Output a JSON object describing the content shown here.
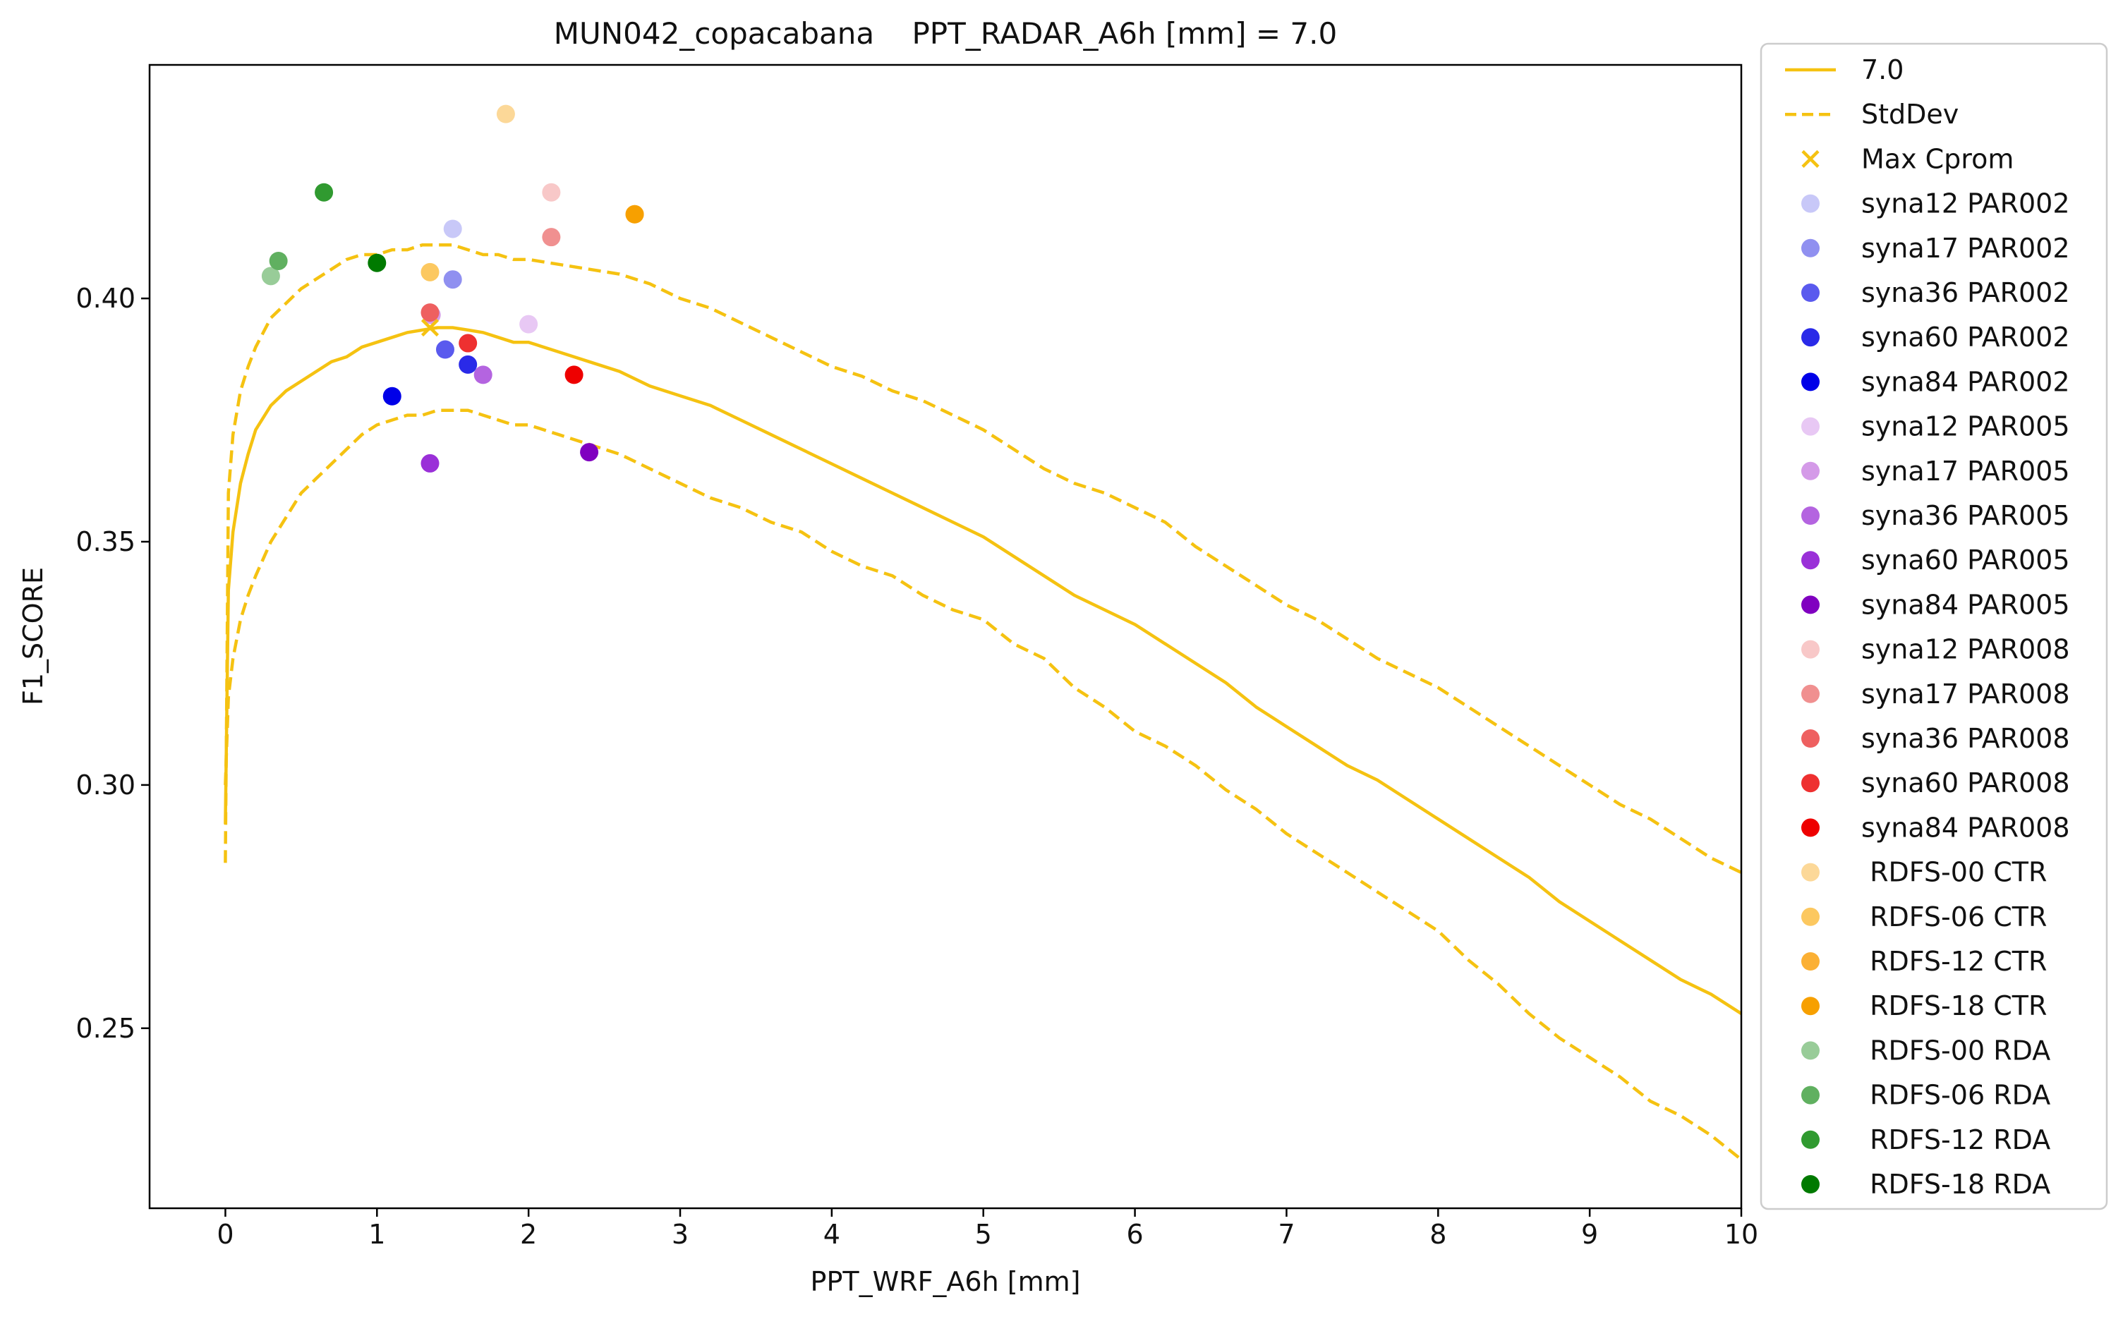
{
  "chart_data": {
    "type": "line",
    "title": "MUN042_copacabana    PPT_RADAR_A6h [mm] = 7.0",
    "xlabel": "PPT_WRF_A6h [mm]",
    "ylabel": "F1_SCORE",
    "xlim": [
      -0.5,
      10
    ],
    "ylim": [
      0.213,
      0.448
    ],
    "xticks": [
      0,
      1,
      2,
      3,
      4,
      5,
      6,
      7,
      8,
      9,
      10
    ],
    "yticks": [
      0.25,
      0.3,
      0.35,
      0.4
    ],
    "ytick_labels": [
      "0.25",
      "0.30",
      "0.35",
      "0.40"
    ],
    "grid": false,
    "legend_position": "outside-right",
    "line_color": "#f5c211",
    "series": [
      {
        "name": "7.0",
        "style": "solid",
        "x": [
          0,
          0.02,
          0.05,
          0.1,
          0.15,
          0.2,
          0.3,
          0.4,
          0.5,
          0.6,
          0.7,
          0.8,
          0.9,
          1.0,
          1.1,
          1.2,
          1.3,
          1.4,
          1.5,
          1.6,
          1.7,
          1.8,
          1.9,
          2.0,
          2.2,
          2.4,
          2.6,
          2.8,
          3.0,
          3.2,
          3.4,
          3.6,
          3.8,
          4.0,
          4.2,
          4.4,
          4.6,
          4.8,
          5.0,
          5.2,
          5.4,
          5.6,
          5.8,
          6.0,
          6.2,
          6.4,
          6.6,
          6.8,
          7.0,
          7.2,
          7.4,
          7.6,
          7.8,
          8.0,
          8.2,
          8.4,
          8.6,
          8.8,
          9.0,
          9.2,
          9.4,
          9.6,
          9.8,
          10.0
        ],
        "y": [
          0.292,
          0.34,
          0.352,
          0.362,
          0.368,
          0.373,
          0.378,
          0.381,
          0.383,
          0.385,
          0.387,
          0.388,
          0.39,
          0.391,
          0.392,
          0.393,
          0.3935,
          0.394,
          0.394,
          0.3935,
          0.393,
          0.392,
          0.391,
          0.391,
          0.389,
          0.387,
          0.385,
          0.382,
          0.38,
          0.378,
          0.375,
          0.372,
          0.369,
          0.366,
          0.363,
          0.36,
          0.357,
          0.354,
          0.351,
          0.347,
          0.343,
          0.339,
          0.336,
          0.333,
          0.329,
          0.325,
          0.321,
          0.316,
          0.312,
          0.308,
          0.304,
          0.301,
          0.297,
          0.293,
          0.289,
          0.285,
          0.281,
          0.276,
          0.272,
          0.268,
          0.264,
          0.26,
          0.257,
          0.253
        ]
      },
      {
        "name": "StdDev",
        "style": "dashed",
        "x": [
          0,
          0.02,
          0.05,
          0.1,
          0.15,
          0.2,
          0.3,
          0.4,
          0.5,
          0.6,
          0.7,
          0.8,
          0.9,
          1.0,
          1.1,
          1.2,
          1.3,
          1.4,
          1.5,
          1.6,
          1.7,
          1.8,
          1.9,
          2.0,
          2.2,
          2.4,
          2.6,
          2.8,
          3.0,
          3.2,
          3.4,
          3.6,
          3.8,
          4.0,
          4.2,
          4.4,
          4.6,
          4.8,
          5.0,
          5.2,
          5.4,
          5.6,
          5.8,
          6.0,
          6.2,
          6.4,
          6.6,
          6.8,
          7.0,
          7.2,
          7.4,
          7.6,
          7.8,
          8.0,
          8.2,
          8.4,
          8.6,
          8.8,
          9.0,
          9.2,
          9.4,
          9.6,
          9.8,
          10.0
        ],
        "y": [
          0.284,
          0.36,
          0.372,
          0.381,
          0.386,
          0.39,
          0.396,
          0.399,
          0.402,
          0.404,
          0.406,
          0.408,
          0.409,
          0.409,
          0.41,
          0.41,
          0.411,
          0.411,
          0.411,
          0.41,
          0.409,
          0.409,
          0.408,
          0.408,
          0.407,
          0.406,
          0.405,
          0.403,
          0.4,
          0.398,
          0.395,
          0.392,
          0.389,
          0.386,
          0.384,
          0.381,
          0.379,
          0.376,
          0.373,
          0.369,
          0.365,
          0.362,
          0.36,
          0.357,
          0.354,
          0.349,
          0.345,
          0.341,
          0.337,
          0.334,
          0.33,
          0.326,
          0.323,
          0.32,
          0.316,
          0.312,
          0.308,
          0.304,
          0.3,
          0.296,
          0.293,
          0.289,
          0.285,
          0.282
        ]
      },
      {
        "name": "",
        "style": "dashed",
        "x": [
          0,
          0.02,
          0.05,
          0.1,
          0.15,
          0.2,
          0.3,
          0.4,
          0.5,
          0.6,
          0.7,
          0.8,
          0.9,
          1.0,
          1.1,
          1.2,
          1.3,
          1.4,
          1.5,
          1.6,
          1.7,
          1.8,
          1.9,
          2.0,
          2.2,
          2.4,
          2.6,
          2.8,
          3.0,
          3.2,
          3.4,
          3.6,
          3.8,
          4.0,
          4.2,
          4.4,
          4.6,
          4.8,
          5.0,
          5.2,
          5.4,
          5.6,
          5.8,
          6.0,
          6.2,
          6.4,
          6.6,
          6.8,
          7.0,
          7.2,
          7.4,
          7.6,
          7.8,
          8.0,
          8.2,
          8.4,
          8.6,
          8.8,
          9.0,
          9.2,
          9.4,
          9.6,
          9.8,
          10.0
        ],
        "y": [
          0.3,
          0.318,
          0.326,
          0.334,
          0.339,
          0.343,
          0.35,
          0.355,
          0.36,
          0.363,
          0.366,
          0.369,
          0.372,
          0.374,
          0.375,
          0.376,
          0.376,
          0.377,
          0.377,
          0.377,
          0.376,
          0.375,
          0.374,
          0.374,
          0.372,
          0.37,
          0.368,
          0.365,
          0.362,
          0.359,
          0.357,
          0.354,
          0.352,
          0.348,
          0.345,
          0.343,
          0.339,
          0.336,
          0.334,
          0.329,
          0.326,
          0.32,
          0.316,
          0.311,
          0.308,
          0.304,
          0.299,
          0.295,
          0.29,
          0.286,
          0.282,
          0.278,
          0.274,
          0.27,
          0.264,
          0.259,
          0.253,
          0.248,
          0.244,
          0.24,
          0.235,
          0.232,
          0.228,
          0.223
        ]
      }
    ],
    "max_cprom": {
      "name": "Max Cprom",
      "x": 1.35,
      "y": 0.394
    },
    "points": [
      {
        "name": "syna12 PAR002",
        "color": "#c8c8f8",
        "x": 1.5,
        "y": 0.4143
      },
      {
        "name": "syna17 PAR002",
        "color": "#9090f0",
        "x": 1.5,
        "y": 0.4039
      },
      {
        "name": "syna36 PAR002",
        "color": "#5a5aee",
        "x": 1.45,
        "y": 0.3895
      },
      {
        "name": "syna60 PAR002",
        "color": "#2a2ae8",
        "x": 1.6,
        "y": 0.3864
      },
      {
        "name": "syna84 PAR002",
        "color": "#0000e8",
        "x": 1.1,
        "y": 0.3799
      },
      {
        "name": "syna12 PAR005",
        "color": "#e8c8f4",
        "x": 2.0,
        "y": 0.3947
      },
      {
        "name": "syna17 PAR005",
        "color": "#d49ae8",
        "x": 1.36,
        "y": 0.3966
      },
      {
        "name": "syna36 PAR005",
        "color": "#b464e0",
        "x": 1.7,
        "y": 0.3843
      },
      {
        "name": "syna60 PAR005",
        "color": "#9a30d8",
        "x": 1.35,
        "y": 0.3661
      },
      {
        "name": "syna84 PAR005",
        "color": "#8000c0",
        "x": 2.4,
        "y": 0.3684
      },
      {
        "name": "syna12 PAR008",
        "color": "#f8c8c8",
        "x": 2.15,
        "y": 0.4218
      },
      {
        "name": "syna17 PAR008",
        "color": "#f09090",
        "x": 2.15,
        "y": 0.4126
      },
      {
        "name": "syna36 PAR008",
        "color": "#ee6060",
        "x": 1.35,
        "y": 0.3971
      },
      {
        "name": "syna60 PAR008",
        "color": "#ee3030",
        "x": 1.6,
        "y": 0.3908
      },
      {
        "name": "syna84 PAR008",
        "color": "#ee0000",
        "x": 2.3,
        "y": 0.3843
      },
      {
        "name": "RDFS-00 CTR",
        "color": "#fcd898",
        "x": 1.85,
        "y": 0.4379
      },
      {
        "name": "RDFS-06 CTR",
        "color": "#fcc860",
        "x": 1.35,
        "y": 0.4054
      },
      {
        "name": "RDFS-12 CTR",
        "color": "#fbb034",
        "x": 2.7,
        "y": 0.4173
      },
      {
        "name": "RDFS-18 CTR",
        "color": "#f7a000",
        "x": 2.7,
        "y": 0.4173
      },
      {
        "name": "RDFS-00 RDA",
        "color": "#98cc98",
        "x": 0.3,
        "y": 0.4046
      },
      {
        "name": "RDFS-06 RDA",
        "color": "#60b060",
        "x": 0.35,
        "y": 0.4077
      },
      {
        "name": "RDFS-12 RDA",
        "color": "#309a30",
        "x": 0.65,
        "y": 0.4218
      },
      {
        "name": "RDFS-18 RDA",
        "color": "#007a00",
        "x": 1.0,
        "y": 0.4073
      }
    ]
  },
  "legend": {
    "entries": [
      {
        "label": "7.0",
        "kind": "line",
        "color": "#f5c211"
      },
      {
        "label": "StdDev",
        "kind": "dashed",
        "color": "#f5c211"
      },
      {
        "label": "Max Cprom",
        "kind": "x",
        "color": "#f5c211"
      },
      {
        "label": "syna12 PAR002",
        "kind": "dot",
        "color": "#c8c8f8"
      },
      {
        "label": "syna17 PAR002",
        "kind": "dot",
        "color": "#9090f0"
      },
      {
        "label": "syna36 PAR002",
        "kind": "dot",
        "color": "#5a5aee"
      },
      {
        "label": "syna60 PAR002",
        "kind": "dot",
        "color": "#2a2ae8"
      },
      {
        "label": "syna84 PAR002",
        "kind": "dot",
        "color": "#0000e8"
      },
      {
        "label": "syna12 PAR005",
        "kind": "dot",
        "color": "#e8c8f4"
      },
      {
        "label": "syna17 PAR005",
        "kind": "dot",
        "color": "#d49ae8"
      },
      {
        "label": "syna36 PAR005",
        "kind": "dot",
        "color": "#b464e0"
      },
      {
        "label": "syna60 PAR005",
        "kind": "dot",
        "color": "#9a30d8"
      },
      {
        "label": "syna84 PAR005",
        "kind": "dot",
        "color": "#8000c0"
      },
      {
        "label": "syna12 PAR008",
        "kind": "dot",
        "color": "#f8c8c8"
      },
      {
        "label": "syna17 PAR008",
        "kind": "dot",
        "color": "#f09090"
      },
      {
        "label": "syna36 PAR008",
        "kind": "dot",
        "color": "#ee6060"
      },
      {
        "label": "syna60 PAR008",
        "kind": "dot",
        "color": "#ee3030"
      },
      {
        "label": "syna84 PAR008",
        "kind": "dot",
        "color": "#ee0000"
      },
      {
        "label": " RDFS-00 CTR",
        "kind": "dot",
        "color": "#fcd898"
      },
      {
        "label": " RDFS-06 CTR",
        "kind": "dot",
        "color": "#fcc860"
      },
      {
        "label": " RDFS-12 CTR",
        "kind": "dot",
        "color": "#fbb034"
      },
      {
        "label": " RDFS-18 CTR",
        "kind": "dot",
        "color": "#f7a000"
      },
      {
        "label": " RDFS-00 RDA",
        "kind": "dot",
        "color": "#98cc98"
      },
      {
        "label": " RDFS-06 RDA",
        "kind": "dot",
        "color": "#60b060"
      },
      {
        "label": " RDFS-12 RDA",
        "kind": "dot",
        "color": "#309a30"
      },
      {
        "label": " RDFS-18 RDA",
        "kind": "dot",
        "color": "#007a00"
      }
    ]
  }
}
